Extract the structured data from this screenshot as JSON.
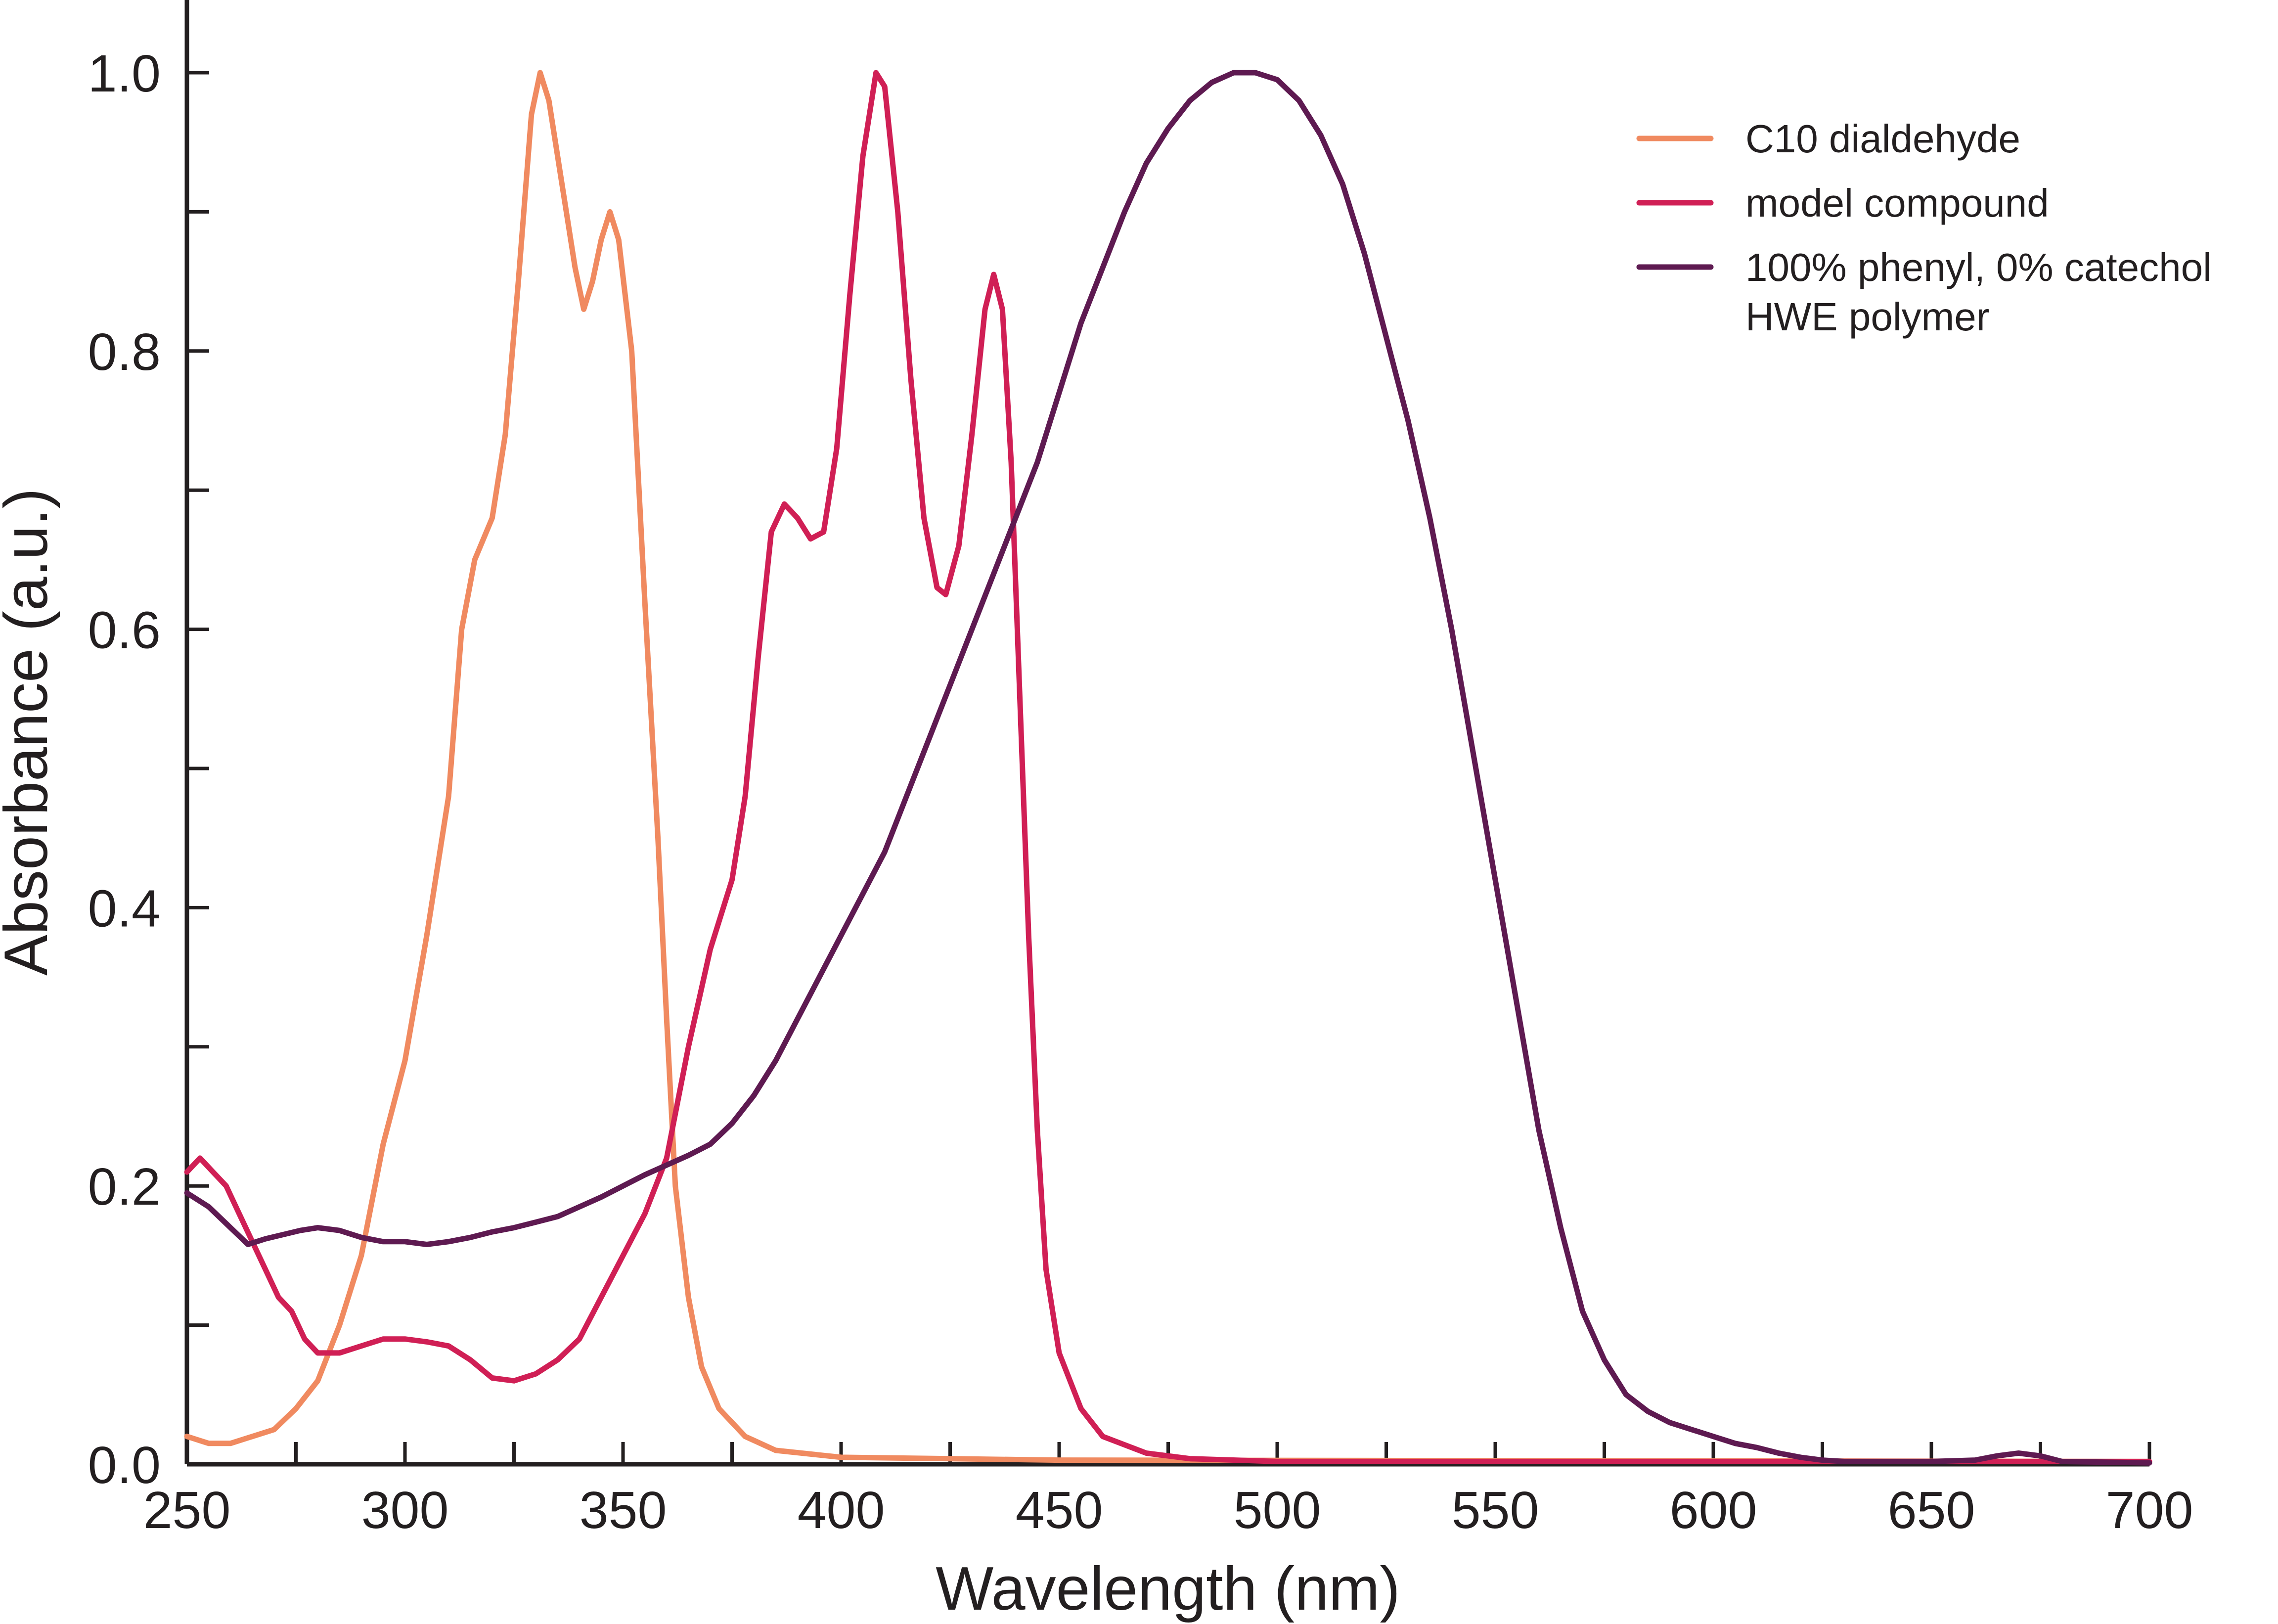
{
  "chart_data": {
    "type": "line",
    "title": "",
    "xlabel": "Wavelength (nm)",
    "ylabel": "Absorbance (a.u.)",
    "xlim": [
      250,
      700
    ],
    "ylim": [
      0,
      1.0
    ],
    "x_ticks": [
      250,
      300,
      350,
      400,
      450,
      500,
      550,
      600,
      650,
      700
    ],
    "x_tick_labels": [
      "250",
      "300",
      "350",
      "400",
      "450",
      "500",
      "550",
      "600",
      "650",
      "700"
    ],
    "y_ticks": [
      0.0,
      0.2,
      0.4,
      0.6,
      0.8,
      1.0
    ],
    "y_tick_labels": [
      "0.0",
      "0.2",
      "0.4",
      "0.6",
      "0.8",
      "1.0"
    ],
    "grid": false,
    "legend_position": "top-right",
    "series": [
      {
        "name": "C10 dialdehyde",
        "color": "#f08a60",
        "points": [
          [
            250,
            0.02
          ],
          [
            255,
            0.015
          ],
          [
            260,
            0.015
          ],
          [
            265,
            0.02
          ],
          [
            270,
            0.025
          ],
          [
            275,
            0.04
          ],
          [
            280,
            0.06
          ],
          [
            285,
            0.1
          ],
          [
            290,
            0.15
          ],
          [
            295,
            0.23
          ],
          [
            300,
            0.29
          ],
          [
            305,
            0.38
          ],
          [
            310,
            0.48
          ],
          [
            313,
            0.6
          ],
          [
            316,
            0.65
          ],
          [
            320,
            0.68
          ],
          [
            323,
            0.74
          ],
          [
            326,
            0.85
          ],
          [
            329,
            0.97
          ],
          [
            331,
            1.0
          ],
          [
            333,
            0.98
          ],
          [
            336,
            0.92
          ],
          [
            339,
            0.86
          ],
          [
            341,
            0.83
          ],
          [
            343,
            0.85
          ],
          [
            345,
            0.88
          ],
          [
            347,
            0.9
          ],
          [
            349,
            0.88
          ],
          [
            352,
            0.8
          ],
          [
            355,
            0.62
          ],
          [
            358,
            0.45
          ],
          [
            360,
            0.32
          ],
          [
            362,
            0.2
          ],
          [
            365,
            0.12
          ],
          [
            368,
            0.07
          ],
          [
            372,
            0.04
          ],
          [
            378,
            0.02
          ],
          [
            385,
            0.01
          ],
          [
            400,
            0.005
          ],
          [
            450,
            0.003
          ],
          [
            700,
            0.002
          ]
        ]
      },
      {
        "name": "model compound",
        "color": "#d01f55",
        "points": [
          [
            250,
            0.21
          ],
          [
            253,
            0.22
          ],
          [
            256,
            0.21
          ],
          [
            259,
            0.2
          ],
          [
            262,
            0.18
          ],
          [
            265,
            0.16
          ],
          [
            268,
            0.14
          ],
          [
            271,
            0.12
          ],
          [
            274,
            0.11
          ],
          [
            277,
            0.09
          ],
          [
            280,
            0.08
          ],
          [
            285,
            0.08
          ],
          [
            290,
            0.085
          ],
          [
            295,
            0.09
          ],
          [
            300,
            0.09
          ],
          [
            305,
            0.088
          ],
          [
            310,
            0.085
          ],
          [
            315,
            0.075
          ],
          [
            320,
            0.062
          ],
          [
            325,
            0.06
          ],
          [
            330,
            0.065
          ],
          [
            335,
            0.075
          ],
          [
            340,
            0.09
          ],
          [
            345,
            0.12
          ],
          [
            350,
            0.15
          ],
          [
            355,
            0.18
          ],
          [
            360,
            0.22
          ],
          [
            365,
            0.3
          ],
          [
            370,
            0.37
          ],
          [
            375,
            0.42
          ],
          [
            378,
            0.48
          ],
          [
            381,
            0.58
          ],
          [
            384,
            0.67
          ],
          [
            387,
            0.69
          ],
          [
            390,
            0.68
          ],
          [
            393,
            0.665
          ],
          [
            396,
            0.67
          ],
          [
            399,
            0.73
          ],
          [
            402,
            0.84
          ],
          [
            405,
            0.94
          ],
          [
            408,
            1.0
          ],
          [
            410,
            0.99
          ],
          [
            413,
            0.9
          ],
          [
            416,
            0.78
          ],
          [
            419,
            0.68
          ],
          [
            422,
            0.63
          ],
          [
            424,
            0.625
          ],
          [
            427,
            0.66
          ],
          [
            430,
            0.74
          ],
          [
            433,
            0.83
          ],
          [
            435,
            0.855
          ],
          [
            437,
            0.83
          ],
          [
            439,
            0.72
          ],
          [
            441,
            0.55
          ],
          [
            443,
            0.38
          ],
          [
            445,
            0.24
          ],
          [
            447,
            0.14
          ],
          [
            450,
            0.08
          ],
          [
            455,
            0.04
          ],
          [
            460,
            0.02
          ],
          [
            470,
            0.008
          ],
          [
            480,
            0.004
          ],
          [
            500,
            0.002
          ],
          [
            700,
            0.002
          ]
        ]
      },
      {
        "name": "100% phenyl, 0% catechol HWE polymer",
        "color": "#5e1a51",
        "points": [
          [
            250,
            0.195
          ],
          [
            255,
            0.185
          ],
          [
            260,
            0.17
          ],
          [
            264,
            0.158
          ],
          [
            268,
            0.162
          ],
          [
            272,
            0.165
          ],
          [
            276,
            0.168
          ],
          [
            280,
            0.17
          ],
          [
            285,
            0.168
          ],
          [
            290,
            0.163
          ],
          [
            295,
            0.16
          ],
          [
            300,
            0.16
          ],
          [
            305,
            0.158
          ],
          [
            310,
            0.16
          ],
          [
            315,
            0.163
          ],
          [
            320,
            0.167
          ],
          [
            325,
            0.17
          ],
          [
            330,
            0.174
          ],
          [
            335,
            0.178
          ],
          [
            340,
            0.185
          ],
          [
            345,
            0.192
          ],
          [
            350,
            0.2
          ],
          [
            355,
            0.208
          ],
          [
            360,
            0.215
          ],
          [
            365,
            0.222
          ],
          [
            370,
            0.23
          ],
          [
            375,
            0.245
          ],
          [
            380,
            0.265
          ],
          [
            385,
            0.29
          ],
          [
            390,
            0.32
          ],
          [
            395,
            0.35
          ],
          [
            400,
            0.38
          ],
          [
            405,
            0.41
          ],
          [
            410,
            0.44
          ],
          [
            415,
            0.48
          ],
          [
            420,
            0.52
          ],
          [
            425,
            0.56
          ],
          [
            430,
            0.6
          ],
          [
            435,
            0.64
          ],
          [
            440,
            0.68
          ],
          [
            445,
            0.72
          ],
          [
            450,
            0.77
          ],
          [
            455,
            0.82
          ],
          [
            460,
            0.86
          ],
          [
            465,
            0.9
          ],
          [
            470,
            0.935
          ],
          [
            475,
            0.96
          ],
          [
            480,
            0.98
          ],
          [
            485,
            0.993
          ],
          [
            490,
            1.0
          ],
          [
            495,
            1.0
          ],
          [
            500,
            0.995
          ],
          [
            505,
            0.98
          ],
          [
            510,
            0.955
          ],
          [
            515,
            0.92
          ],
          [
            520,
            0.87
          ],
          [
            525,
            0.81
          ],
          [
            530,
            0.75
          ],
          [
            535,
            0.68
          ],
          [
            540,
            0.6
          ],
          [
            545,
            0.51
          ],
          [
            550,
            0.42
          ],
          [
            555,
            0.33
          ],
          [
            560,
            0.24
          ],
          [
            565,
            0.17
          ],
          [
            570,
            0.11
          ],
          [
            575,
            0.075
          ],
          [
            580,
            0.05
          ],
          [
            585,
            0.038
          ],
          [
            590,
            0.03
          ],
          [
            595,
            0.025
          ],
          [
            600,
            0.02
          ],
          [
            605,
            0.015
          ],
          [
            610,
            0.012
          ],
          [
            615,
            0.008
          ],
          [
            620,
            0.005
          ],
          [
            625,
            0.003
          ],
          [
            630,
            0.002
          ],
          [
            640,
            0.002
          ],
          [
            650,
            0.002
          ],
          [
            660,
            0.003
          ],
          [
            665,
            0.006
          ],
          [
            670,
            0.008
          ],
          [
            675,
            0.006
          ],
          [
            680,
            0.002
          ],
          [
            700,
            0.001
          ]
        ]
      }
    ]
  }
}
